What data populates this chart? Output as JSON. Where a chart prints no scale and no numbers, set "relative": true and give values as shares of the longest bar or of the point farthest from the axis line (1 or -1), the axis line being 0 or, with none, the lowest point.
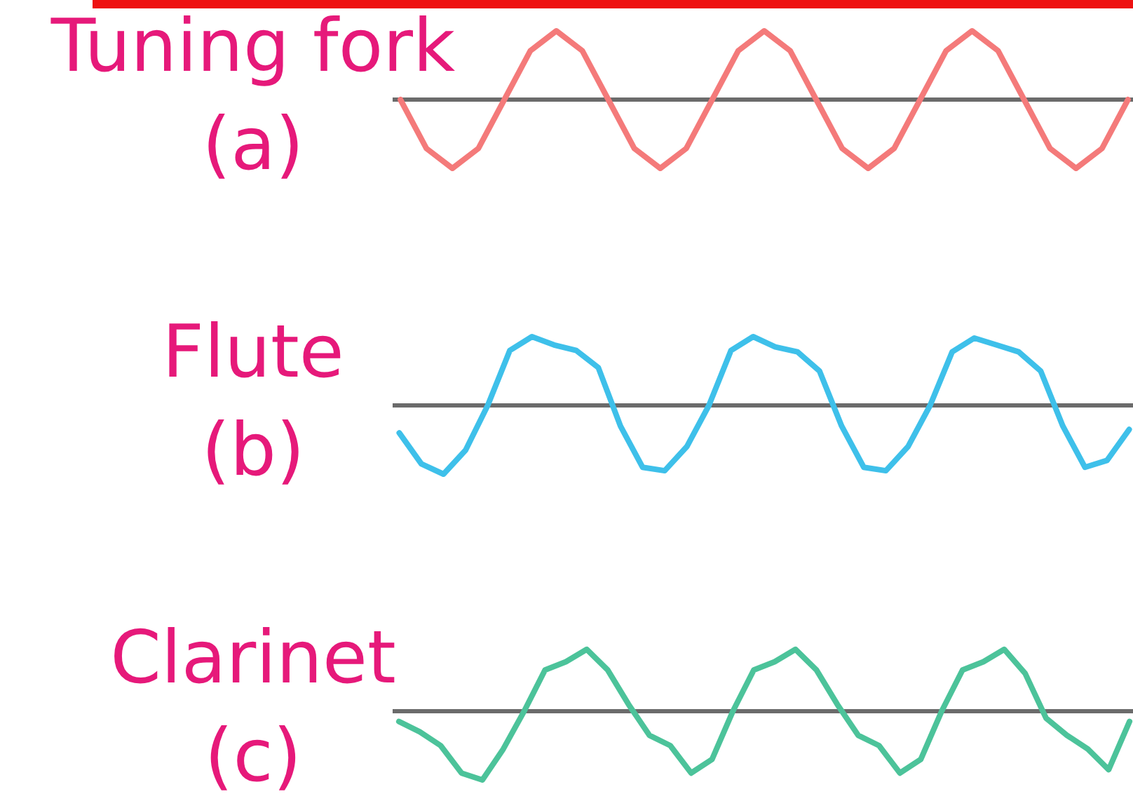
{
  "chart_data": [
    {
      "type": "line",
      "title": "Tuning fork",
      "subtitle": "(a)",
      "relative": true,
      "categories": [
        null,
        null,
        null,
        null,
        null,
        null,
        null,
        null,
        null,
        null,
        null,
        null,
        null,
        null,
        null,
        null,
        null,
        null,
        null,
        null,
        null,
        null,
        null,
        null,
        null,
        null,
        null,
        null,
        null
      ],
      "series": [
        {
          "color": "#f47a7a",
          "values": [
            0,
            -0.71,
            -1,
            -0.71,
            0,
            0.71,
            1,
            0.71,
            0,
            -0.71,
            -1,
            -0.71,
            0,
            0.71,
            1,
            0.71,
            0,
            -0.71,
            -1,
            -0.71,
            0,
            0.71,
            1,
            0.71,
            0,
            -0.71,
            -1,
            -0.71,
            0
          ]
        }
      ]
    },
    {
      "type": "line",
      "title": "Flute",
      "subtitle": "(b)",
      "relative": true,
      "categories": [
        null,
        null,
        null,
        null,
        null,
        null,
        null,
        null,
        null,
        null,
        null,
        null,
        null,
        null,
        null,
        null,
        null,
        null,
        null,
        null,
        null,
        null,
        null,
        null,
        null,
        null,
        null,
        null,
        null,
        null,
        null,
        null,
        null,
        null
      ],
      "series": [
        {
          "color": "#3ec0ea",
          "values": [
            -0.4,
            -0.85,
            -1,
            -0.65,
            0,
            0.8,
            1,
            0.88,
            0.8,
            0.55,
            -0.3,
            -0.9,
            -0.95,
            -0.6,
            0,
            0.8,
            1,
            0.85,
            0.78,
            0.5,
            -0.3,
            -0.9,
            -0.95,
            -0.6,
            0,
            0.78,
            0.98,
            0.88,
            0.78,
            0.5,
            -0.3,
            -0.9,
            -0.8,
            -0.35
          ]
        }
      ]
    },
    {
      "type": "line",
      "title": "Clarinet",
      "subtitle": "(c)",
      "relative": true,
      "categories": [
        null,
        null,
        null,
        null,
        null,
        null,
        null,
        null,
        null,
        null,
        null,
        null,
        null,
        null,
        null,
        null,
        null,
        null,
        null,
        null,
        null,
        null,
        null,
        null,
        null,
        null,
        null,
        null,
        null,
        null,
        null,
        null,
        null,
        null,
        null,
        null
      ],
      "series": [
        {
          "color": "#4cc39a",
          "values": [
            -0.15,
            -0.3,
            -0.5,
            -0.9,
            -1,
            -0.55,
            0,
            0.6,
            0.72,
            0.9,
            0.6,
            0.1,
            -0.35,
            -0.5,
            -0.9,
            -0.7,
            0,
            0.6,
            0.72,
            0.9,
            0.6,
            0.1,
            -0.35,
            -0.5,
            -0.9,
            -0.7,
            0,
            0.6,
            0.72,
            0.9,
            0.55,
            -0.1,
            -0.35,
            -0.55,
            -0.85,
            -0.15
          ]
        }
      ]
    }
  ]
}
